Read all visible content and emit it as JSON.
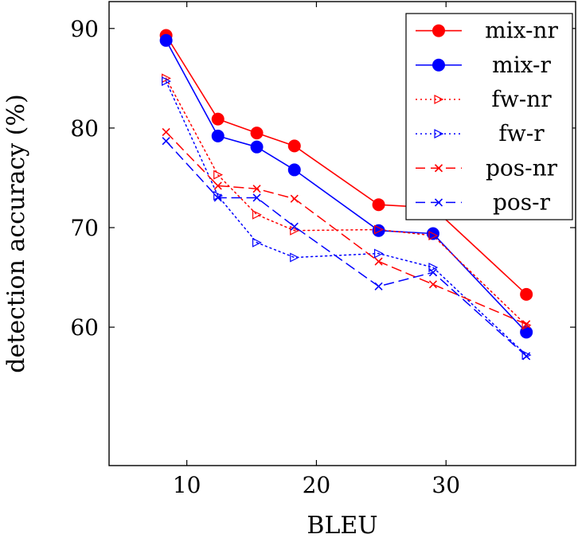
{
  "chart_data": {
    "type": "line",
    "xlabel": "BLEU",
    "ylabel": "detection accuracy (%)",
    "xlim": [
      4,
      40
    ],
    "ylim": [
      46.1,
      92.7
    ],
    "xticks": [
      10,
      20,
      30
    ],
    "yticks": [
      60,
      70,
      80,
      90
    ],
    "grid": false,
    "legend_position": "top-right",
    "series": [
      {
        "name": "mix-nr",
        "color": "#ff0000",
        "marker": "circle",
        "line": "solid",
        "x": [
          8.4,
          12.4,
          15.4,
          18.3,
          24.8,
          29.0,
          36.2
        ],
        "y": [
          89.3,
          80.9,
          79.5,
          78.2,
          72.3,
          72.0,
          63.3
        ]
      },
      {
        "name": "mix-r",
        "color": "#0000ff",
        "marker": "circle",
        "line": "solid",
        "x": [
          8.4,
          12.4,
          15.4,
          18.3,
          24.8,
          29.0,
          36.2
        ],
        "y": [
          88.8,
          79.2,
          78.1,
          75.8,
          69.7,
          69.4,
          59.5
        ]
      },
      {
        "name": "fw-nr",
        "color": "#ff0000",
        "marker": "tri",
        "line": "dotted",
        "x": [
          8.4,
          12.4,
          15.4,
          18.3,
          24.8,
          29.0,
          36.2
        ],
        "y": [
          85.0,
          75.3,
          71.3,
          69.7,
          69.8,
          69.2,
          60.2
        ]
      },
      {
        "name": "fw-r",
        "color": "#0000ff",
        "marker": "tri",
        "line": "dotted",
        "x": [
          8.4,
          12.4,
          15.4,
          18.3,
          24.8,
          29.0,
          36.2
        ],
        "y": [
          84.7,
          73.2,
          68.5,
          67.0,
          67.4,
          66.0,
          57.2
        ]
      },
      {
        "name": "pos-nr",
        "color": "#ff0000",
        "marker": "x",
        "line": "dashed",
        "x": [
          8.4,
          12.4,
          15.4,
          18.3,
          24.8,
          29.0,
          36.2
        ],
        "y": [
          79.6,
          74.2,
          73.9,
          72.9,
          66.6,
          64.3,
          60.3
        ]
      },
      {
        "name": "pos-r",
        "color": "#0000ff",
        "marker": "x",
        "line": "dashed",
        "x": [
          8.4,
          12.4,
          15.4,
          18.3,
          24.8,
          29.0,
          36.2
        ],
        "y": [
          78.7,
          73.0,
          73.0,
          70.1,
          64.1,
          65.5,
          57.1
        ]
      }
    ]
  }
}
